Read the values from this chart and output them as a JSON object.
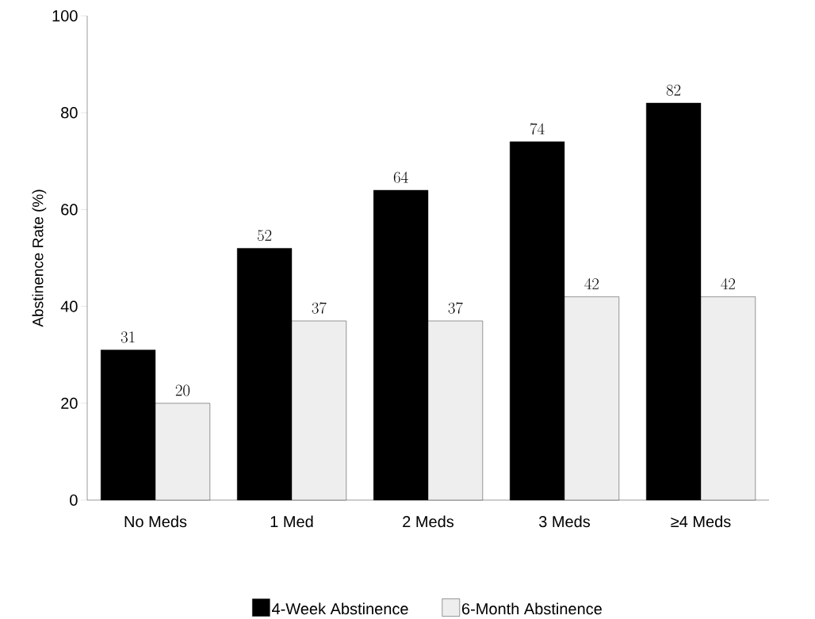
{
  "chart_data": {
    "type": "bar",
    "ylabel": "Abstinence Rate (%)",
    "categories": [
      "No Meds",
      "1 Med",
      "2 Meds",
      "3 Meds",
      "≥4 Meds"
    ],
    "series": [
      {
        "name": "4-Week Abstinence",
        "color": "#000000",
        "values": [
          31,
          52,
          64,
          74,
          82
        ]
      },
      {
        "name": "6-Month Abstinence",
        "color": "#eeeeee",
        "values": [
          20,
          37,
          37,
          42,
          42
        ]
      }
    ],
    "ylim": [
      0,
      100
    ],
    "yticks": [
      0,
      20,
      40,
      60,
      80,
      100
    ],
    "data_labels": true,
    "legend": "bottom",
    "grid": false
  }
}
